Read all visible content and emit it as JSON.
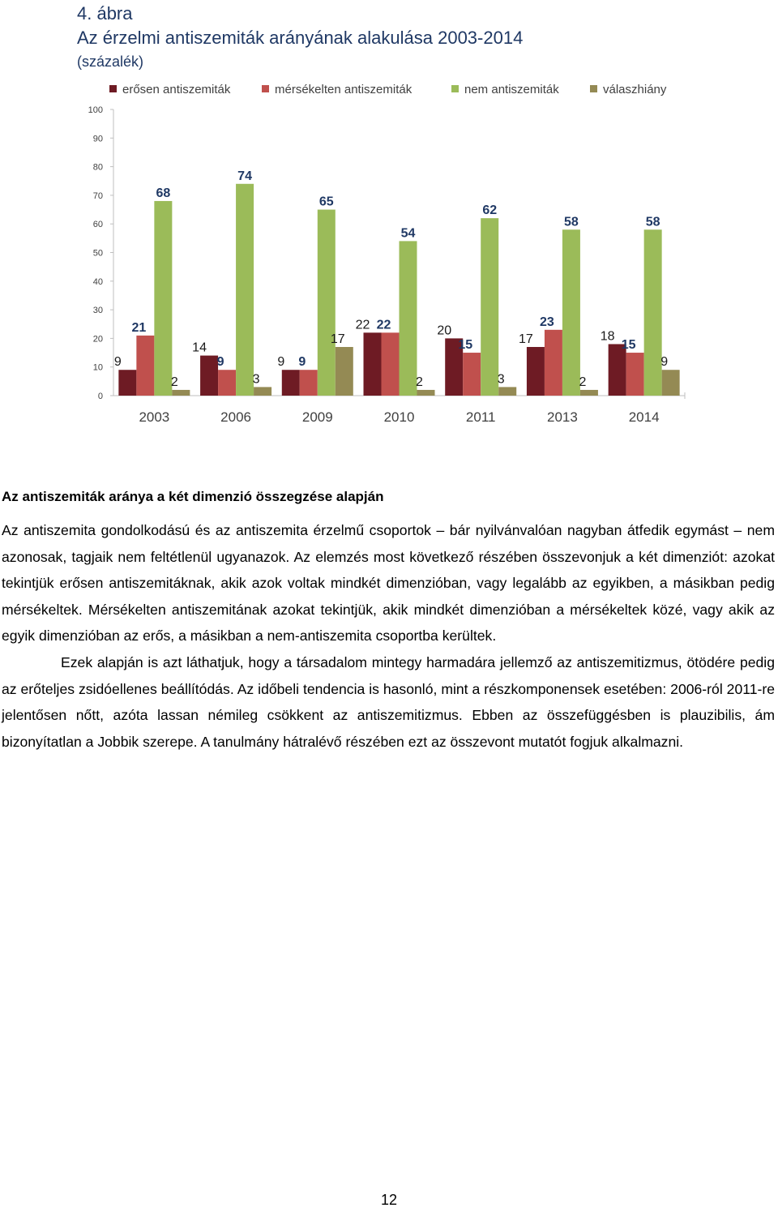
{
  "figure": {
    "number": "4. ábra",
    "title": "Az érzelmi antiszemiták arányának alakulása 2003-2014",
    "subtitle": "(százalék)"
  },
  "chart_data": {
    "type": "bar",
    "categories": [
      "2003",
      "2006",
      "2009",
      "2010",
      "2011",
      "2013",
      "2014"
    ],
    "ylim": [
      0,
      100
    ],
    "yticks": [
      0,
      10,
      20,
      30,
      40,
      50,
      60,
      70,
      80,
      90,
      100
    ],
    "grid": false,
    "legend_position": "top",
    "series": [
      {
        "name": "erősen antiszemiták",
        "color": "#6e1b24",
        "values": [
          9,
          14,
          9,
          22,
          20,
          17,
          18
        ]
      },
      {
        "name": "mérsékelten antiszemiták",
        "color": "#c0504d",
        "values": [
          21,
          9,
          9,
          22,
          15,
          23,
          15
        ]
      },
      {
        "name": "nem antiszemiták",
        "color": "#9bbb59",
        "values": [
          68,
          74,
          65,
          54,
          62,
          58,
          58
        ]
      },
      {
        "name": "válaszhiány",
        "color": "#948a54",
        "values": [
          2,
          3,
          17,
          2,
          3,
          2,
          9
        ]
      }
    ]
  },
  "section": {
    "heading": "Az antiszemiták aránya a két dimenzió összegzése alapján",
    "paragraph1": "Az antiszemita gondolkodású és az antiszemita érzelmű csoportok – bár nyilvánvalóan nagyban átfedik egymást – nem azonosak, tagjaik nem feltétlenül ugyanazok. Az elemzés most következő részében összevonjuk a két dimenziót: azokat tekintjük erősen antiszemitáknak, akik azok voltak mindkét dimenzióban, vagy legalább az egyikben, a másikban pedig mérsékeltek. Mérsékelten antiszemitának azokat tekintjük, akik mindkét dimenzióban a mérsékeltek közé, vagy akik az egyik dimenzióban az erős, a másikban a nem-antiszemita csoportba kerültek.",
    "paragraph2": "Ezek alapján is azt láthatjuk, hogy a társadalom mintegy harmadára jellemző az antiszemitizmus, ötödére pedig az erőteljes zsidóellenes beállítódás. Az időbeli tendencia is hasonló, mint a részkomponensek esetében: 2006-ról 2011-re jelentősen nőtt, azóta lassan némileg csökkent az antiszemitizmus. Ebben az összefüggésben is plauzibilis, ám bizonyítatlan a Jobbik szerepe. A tanulmány hátralévő részében ezt az összevont mutatót fogjuk alkalmazni."
  },
  "page_number": "12"
}
